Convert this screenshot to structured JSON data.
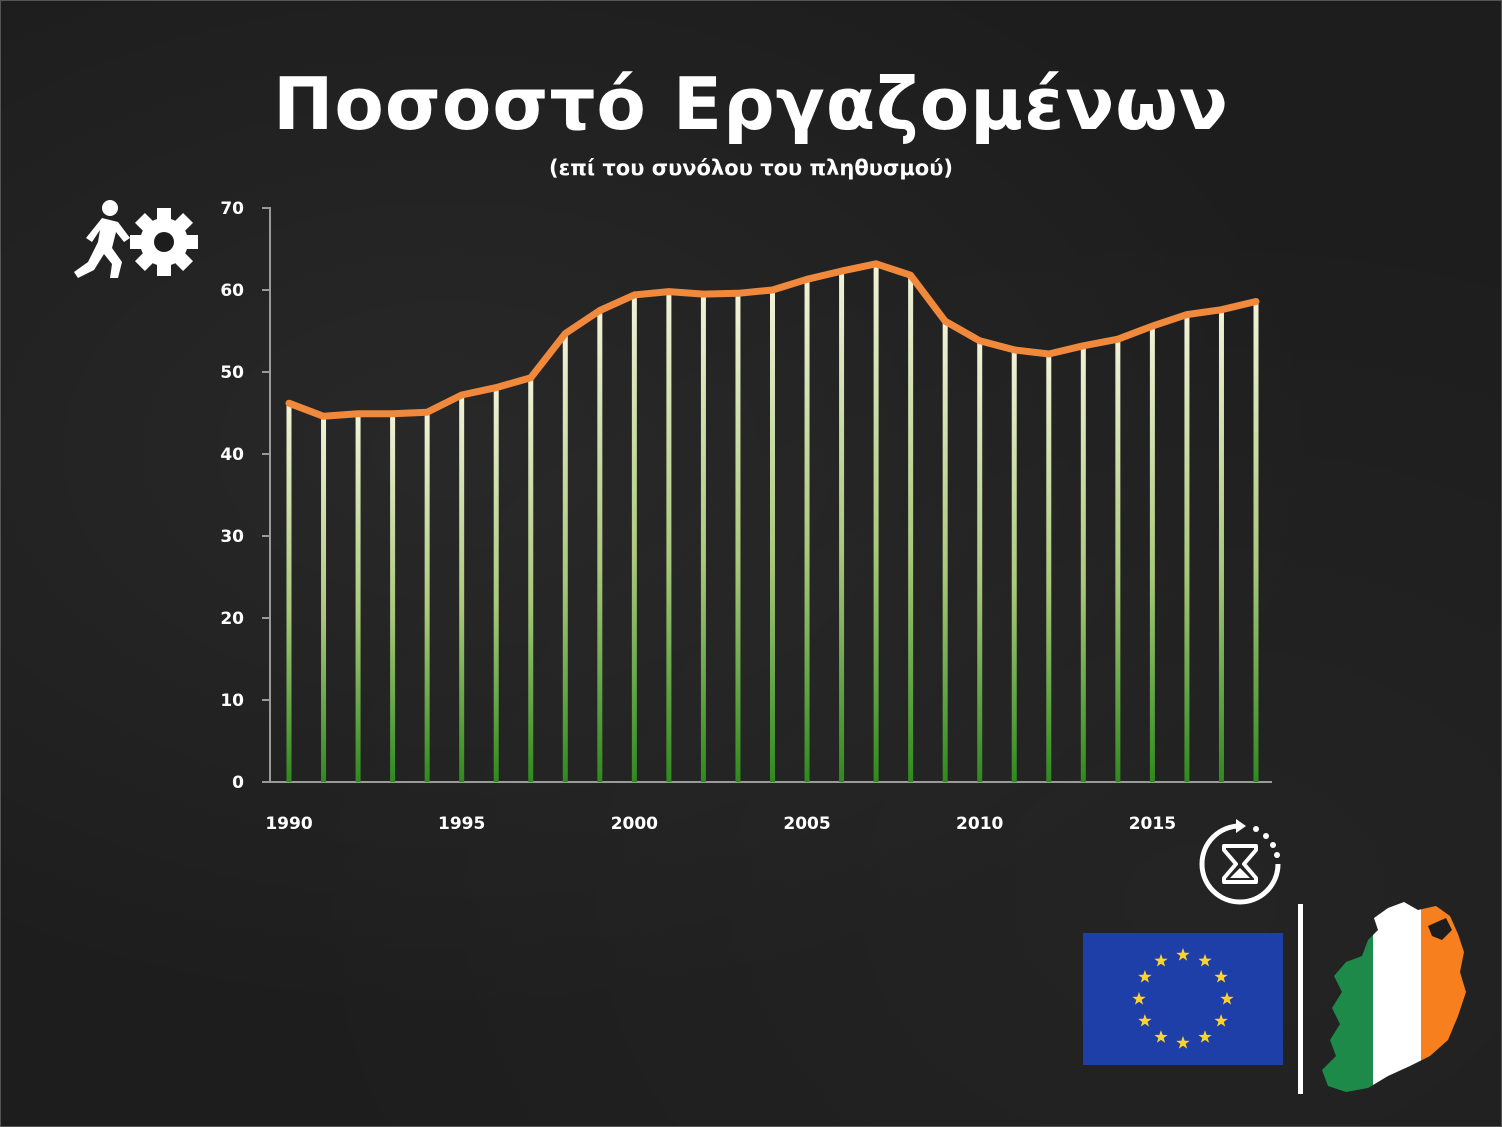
{
  "title": "Ποσοστό Εργαζομένων",
  "subtitle": "(επί του συνόλου του πληθυσμού)",
  "icons": {
    "worker": "person-pushing-gear-icon",
    "time": "hourglass-cycle-icon",
    "eu": "eu-flag-icon",
    "ireland": "ireland-map-flag-icon"
  },
  "colors": {
    "line": "#f0893b",
    "bar_top": "#f2f2d8",
    "bar_bottom": "#2f8a1e",
    "background": "#1d1d1d"
  },
  "chart_data": {
    "type": "line",
    "x": [
      1990,
      1991,
      1992,
      1993,
      1994,
      1995,
      1996,
      1997,
      1998,
      1999,
      2000,
      2001,
      2002,
      2003,
      2004,
      2005,
      2006,
      2007,
      2008,
      2009,
      2010,
      2011,
      2012,
      2013,
      2014,
      2015,
      2016,
      2017,
      2018
    ],
    "values": [
      46.2,
      44.6,
      44.9,
      44.9,
      45.1,
      47.2,
      48.1,
      49.3,
      54.7,
      57.5,
      59.4,
      59.8,
      59.5,
      59.6,
      60.0,
      61.3,
      62.3,
      63.2,
      61.8,
      56.2,
      53.8,
      52.7,
      52.2,
      53.2,
      54.0,
      55.6,
      57.0,
      57.6,
      58.6
    ],
    "x_ticks": [
      "1990",
      "1995",
      "2000",
      "2005",
      "2010",
      "2015"
    ],
    "y_ticks": [
      "0",
      "10",
      "20",
      "30",
      "40",
      "50",
      "60",
      "70"
    ],
    "ylim": [
      0,
      70
    ],
    "xlabel": "",
    "ylabel": "",
    "grid": false,
    "drop_lines": true
  }
}
